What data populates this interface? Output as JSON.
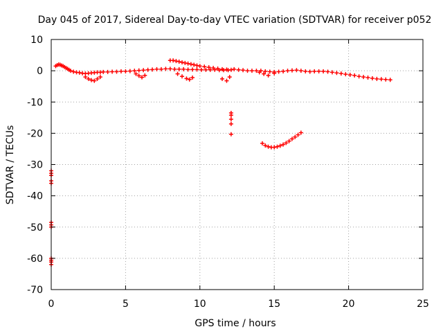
{
  "chart_data": {
    "type": "scatter",
    "title": "Day 045 of 2017, Sidereal Day-to-day VTEC variation (SDTVAR) for receiver p052",
    "xlabel": "GPS time / hours",
    "ylabel": "SDTVAR / TECUs",
    "xlim": [
      0,
      25
    ],
    "ylim": [
      -70,
      10
    ],
    "xticks": [
      0,
      5,
      10,
      15,
      20,
      25
    ],
    "yticks": [
      10,
      0,
      -10,
      -20,
      -30,
      -40,
      -50,
      -60,
      -70
    ],
    "grid": true,
    "marker": "plus",
    "color": "#ff0000",
    "series": [
      {
        "name": "main-band-1",
        "x": [
          0.3,
          0.4,
          0.5,
          0.6,
          0.7,
          0.8,
          0.9,
          1.0,
          1.1,
          1.2,
          1.3,
          1.5,
          1.7,
          1.9,
          2.1,
          2.3,
          2.5,
          2.7,
          2.9,
          3.1,
          3.3,
          3.5,
          3.8,
          4.1,
          4.4,
          4.7,
          5.0,
          5.3,
          5.6,
          5.9,
          6.2,
          6.5,
          6.8,
          7.1,
          7.4,
          7.7,
          8.0,
          8.3,
          8.6,
          8.9,
          9.2,
          9.5,
          9.8,
          10.1,
          10.4,
          10.7,
          11.0,
          11.3,
          11.6,
          11.9
        ],
        "y": [
          1.5,
          1.8,
          2.0,
          1.9,
          1.7,
          1.5,
          1.2,
          0.9,
          0.6,
          0.3,
          0.0,
          -0.3,
          -0.5,
          -0.6,
          -0.8,
          -0.9,
          -0.8,
          -0.7,
          -0.6,
          -0.5,
          -0.5,
          -0.4,
          -0.4,
          -0.3,
          -0.3,
          -0.2,
          -0.2,
          -0.1,
          0.0,
          0.1,
          0.2,
          0.3,
          0.4,
          0.5,
          0.5,
          0.6,
          0.6,
          0.5,
          0.5,
          0.5,
          0.4,
          0.4,
          0.4,
          0.3,
          0.3,
          0.3,
          0.3,
          0.2,
          0.2,
          0.2
        ]
      },
      {
        "name": "main-band-2",
        "x": [
          8.0,
          8.2,
          8.4,
          8.6,
          8.8,
          9.0,
          9.2,
          9.4,
          9.6,
          9.8,
          10.0,
          10.3,
          10.6,
          10.9,
          11.2,
          11.5,
          11.8,
          12.1
        ],
        "y": [
          3.3,
          3.3,
          3.1,
          2.9,
          2.7,
          2.5,
          2.3,
          2.1,
          1.9,
          1.7,
          1.5,
          1.3,
          1.1,
          0.9,
          0.7,
          0.5,
          0.4,
          0.3
        ]
      },
      {
        "name": "main-band-3",
        "x": [
          12.3,
          12.6,
          12.9,
          13.2,
          13.5,
          13.8,
          14.1,
          14.4,
          14.7,
          15.0,
          15.3,
          15.6,
          15.9,
          16.2,
          16.5,
          16.8,
          17.1,
          17.4,
          17.7,
          18.0,
          18.3,
          18.6,
          18.9,
          19.2,
          19.5,
          19.8,
          20.1,
          20.4,
          20.7,
          21.0,
          21.3,
          21.6,
          21.9,
          22.2,
          22.5,
          22.8
        ],
        "y": [
          0.5,
          0.3,
          0.2,
          0.0,
          0.0,
          0.0,
          0.0,
          -0.2,
          -0.3,
          -0.4,
          -0.3,
          -0.2,
          0.0,
          0.1,
          0.2,
          0.0,
          -0.2,
          -0.3,
          -0.2,
          -0.2,
          -0.2,
          -0.3,
          -0.5,
          -0.7,
          -0.9,
          -1.1,
          -1.3,
          -1.5,
          -1.8,
          -2.0,
          -2.2,
          -2.4,
          -2.6,
          -2.7,
          -2.8,
          -2.9
        ]
      },
      {
        "name": "dip-segments",
        "x": [
          2.3,
          2.5,
          2.7,
          2.9,
          3.1,
          3.3,
          5.7,
          5.9,
          6.1,
          6.3,
          8.5,
          8.8,
          9.1,
          9.3,
          9.5,
          11.5,
          11.8,
          12.0,
          14.0,
          14.3,
          14.6,
          15.0
        ],
        "y": [
          -2.0,
          -2.6,
          -3.0,
          -3.2,
          -2.6,
          -2.0,
          -1.0,
          -1.6,
          -2.1,
          -1.5,
          -1.0,
          -1.8,
          -2.5,
          -2.8,
          -2.2,
          -2.6,
          -3.2,
          -2.0,
          -0.5,
          -1.0,
          -1.5,
          -0.8
        ]
      },
      {
        "name": "descending-arc",
        "x": [
          14.2,
          14.4,
          14.6,
          14.8,
          15.0,
          15.2,
          15.4,
          15.6,
          15.8,
          16.0,
          16.2,
          16.4,
          16.6,
          16.8
        ],
        "y": [
          -23.2,
          -23.9,
          -24.3,
          -24.5,
          -24.5,
          -24.3,
          -24.0,
          -23.6,
          -23.1,
          -22.5,
          -21.8,
          -21.2,
          -20.5,
          -19.8
        ]
      },
      {
        "name": "isolated-at-12h",
        "x": [
          12.1,
          12.1,
          12.1,
          12.1,
          12.1
        ],
        "y": [
          -13.5,
          -14.2,
          -15.5,
          -17.0,
          -20.3
        ]
      },
      {
        "name": "isolated-at-0h",
        "x": [
          0.0,
          0.0,
          0.0,
          0.0,
          0.0,
          0.0,
          0.0,
          0.0,
          0.0,
          0.0,
          0.0,
          0.0
        ],
        "y": [
          -32.0,
          -32.8,
          -33.5,
          -35.2,
          -36.0,
          -48.5,
          -49.3,
          -50.0,
          -60.0,
          -60.6,
          -61.2,
          -62.0
        ]
      }
    ]
  }
}
